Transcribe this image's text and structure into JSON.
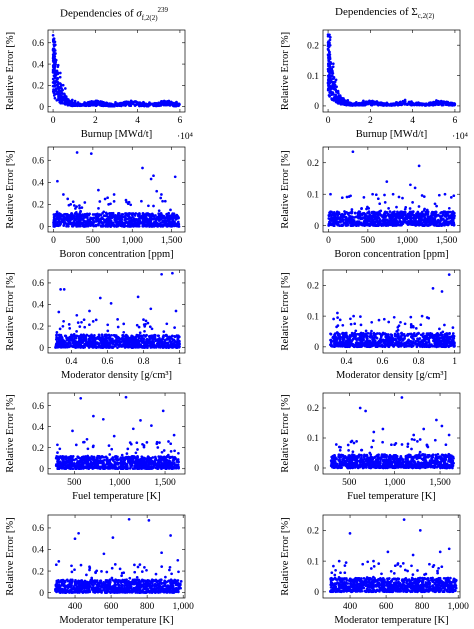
{
  "columns": [
    {
      "title_prefix": "Dependencies of ",
      "symbol": "σ",
      "sup": "239",
      "sub": "f,2(2)"
    },
    {
      "title_prefix": "Dependencies of ",
      "symbol": "Σ",
      "sup": "",
      "sub": "c,2(2)"
    }
  ],
  "colors": {
    "marker": "#0000ff",
    "axis": "#000000"
  },
  "chart_data": [
    {
      "type": "scatter",
      "row": 0,
      "col": 0,
      "xlabel": "Burnup [MWd/t]",
      "ylabel": "Relative Error [%]",
      "xlim": [
        -2400,
        62400
      ],
      "ylim": [
        -0.05,
        0.72
      ],
      "xticks": [
        0,
        20000,
        40000,
        60000
      ],
      "xtick_labels": [
        "0",
        "2",
        "4",
        "6"
      ],
      "yticks": [
        0,
        0.2,
        0.4,
        0.6
      ],
      "ytick_labels": [
        "0",
        "0.2",
        "0.4",
        "0.6"
      ],
      "x_multiplier": "·10⁴",
      "pattern": "burnup",
      "peak": 0.67,
      "base": 0.04
    },
    {
      "type": "scatter",
      "row": 0,
      "col": 1,
      "xlabel": "Burnup [MWd/t]",
      "ylabel": "Relative Error [%]",
      "xlim": [
        -2400,
        62400
      ],
      "ylim": [
        -0.02,
        0.25
      ],
      "xticks": [
        0,
        20000,
        40000,
        60000
      ],
      "xtick_labels": [
        "0",
        "2",
        "4",
        "6"
      ],
      "yticks": [
        0,
        0.1,
        0.2
      ],
      "ytick_labels": [
        "0",
        "0.1",
        "0.2"
      ],
      "x_multiplier": "·10⁴",
      "pattern": "burnup",
      "peak": 0.235,
      "base": 0.012
    },
    {
      "type": "scatter",
      "row": 1,
      "col": 0,
      "xlabel": "Boron concentration [ppm]",
      "ylabel": "Relative Error [%]",
      "xlim": [
        -70,
        1670
      ],
      "ylim": [
        -0.05,
        0.72
      ],
      "xticks": [
        0,
        500,
        1000,
        1500
      ],
      "xtick_labels": [
        "0",
        "500",
        "1,000",
        "1,500"
      ],
      "yticks": [
        0,
        0.2,
        0.4,
        0.6
      ],
      "ytick_labels": [
        "0",
        "0.2",
        "0.4",
        "0.6"
      ],
      "pattern": "cloud",
      "xr": [
        0,
        1600
      ],
      "band": 0.12,
      "outliers": [
        [
          50,
          0.41
        ],
        [
          125,
          0.29
        ],
        [
          300,
          0.67
        ],
        [
          480,
          0.66
        ],
        [
          570,
          0.33
        ],
        [
          770,
          0.29
        ],
        [
          1130,
          0.53
        ],
        [
          1240,
          0.43
        ],
        [
          1270,
          0.46
        ],
        [
          1310,
          0.32
        ],
        [
          1370,
          0.29
        ],
        [
          1545,
          0.45
        ],
        [
          700,
          0.2
        ],
        [
          180,
          0.25
        ],
        [
          960,
          0.22
        ]
      ]
    },
    {
      "type": "scatter",
      "row": 1,
      "col": 1,
      "xlabel": "Boron concentration [ppm]",
      "ylabel": "Relative Error [%]",
      "xlim": [
        -70,
        1670
      ],
      "ylim": [
        -0.02,
        0.25
      ],
      "xticks": [
        0,
        500,
        1000,
        1500
      ],
      "xtick_labels": [
        "0",
        "500",
        "1,000",
        "1,500"
      ],
      "yticks": [
        0,
        0.1,
        0.2
      ],
      "ytick_labels": [
        "0",
        "0.1",
        "0.2"
      ],
      "pattern": "cloud",
      "xr": [
        0,
        1600
      ],
      "band": 0.045,
      "outliers": [
        [
          25,
          0.1
        ],
        [
          310,
          0.235
        ],
        [
          450,
          0.09
        ],
        [
          560,
          0.1
        ],
        [
          740,
          0.14
        ],
        [
          820,
          0.1
        ],
        [
          1040,
          0.13
        ],
        [
          1100,
          0.12
        ],
        [
          1150,
          0.19
        ],
        [
          1480,
          0.1
        ],
        [
          1560,
          0.09
        ],
        [
          650,
          0.07
        ]
      ]
    },
    {
      "type": "scatter",
      "row": 2,
      "col": 0,
      "xlabel": "Moderator density [g/cm³]",
      "ylabel": "Relative Error [%]",
      "xlim": [
        0.27,
        1.03
      ],
      "ylim": [
        -0.05,
        0.72
      ],
      "xticks": [
        0.4,
        0.6,
        0.8,
        1.0
      ],
      "xtick_labels": [
        "0.4",
        "0.6",
        "0.8",
        "1"
      ],
      "yticks": [
        0,
        0.2,
        0.4,
        0.6
      ],
      "ytick_labels": [
        "0",
        "0.2",
        "0.4",
        "0.6"
      ],
      "pattern": "cloud",
      "xr": [
        0.31,
        1.0
      ],
      "band": 0.12,
      "outliers": [
        [
          0.34,
          0.54
        ],
        [
          0.36,
          0.54
        ],
        [
          0.43,
          0.3
        ],
        [
          0.5,
          0.34
        ],
        [
          0.56,
          0.46
        ],
        [
          0.62,
          0.41
        ],
        [
          0.69,
          0.22
        ],
        [
          0.77,
          0.47
        ],
        [
          0.84,
          0.36
        ],
        [
          0.9,
          0.68
        ],
        [
          0.96,
          0.69
        ],
        [
          0.8,
          0.26
        ],
        [
          0.33,
          0.33
        ],
        [
          0.98,
          0.34
        ]
      ]
    },
    {
      "type": "scatter",
      "row": 2,
      "col": 1,
      "xlabel": "Moderator density [g/cm³]",
      "ylabel": "Relative Error [%]",
      "xlim": [
        0.27,
        1.03
      ],
      "ylim": [
        -0.02,
        0.25
      ],
      "xticks": [
        0.4,
        0.6,
        0.8,
        1.0
      ],
      "xtick_labels": [
        "0.4",
        "0.6",
        "0.8",
        "1"
      ],
      "yticks": [
        0,
        0.1,
        0.2
      ],
      "ytick_labels": [
        "0",
        "0.1",
        "0.2"
      ],
      "pattern": "cloud",
      "xr": [
        0.31,
        1.0
      ],
      "band": 0.045,
      "outliers": [
        [
          0.35,
          0.11
        ],
        [
          0.44,
          0.1
        ],
        [
          0.54,
          0.08
        ],
        [
          0.61,
          0.09
        ],
        [
          0.7,
          0.08
        ],
        [
          0.82,
          0.1
        ],
        [
          0.88,
          0.19
        ],
        [
          0.93,
          0.18
        ],
        [
          0.97,
          0.235
        ],
        [
          0.38,
          0.07
        ],
        [
          0.76,
          0.07
        ]
      ]
    },
    {
      "type": "scatter",
      "row": 3,
      "col": 0,
      "xlabel": "Fuel temperature [K]",
      "ylabel": "Relative Error [%]",
      "xlim": [
        210,
        1720
      ],
      "ylim": [
        -0.05,
        0.72
      ],
      "xticks": [
        500,
        1000,
        1500
      ],
      "xtick_labels": [
        "500",
        "1,000",
        "1,500"
      ],
      "yticks": [
        0,
        0.2,
        0.4,
        0.6
      ],
      "ytick_labels": [
        "0",
        "0.2",
        "0.4",
        "0.6"
      ],
      "pattern": "cloud",
      "xr": [
        300,
        1650
      ],
      "band": 0.12,
      "outliers": [
        [
          340,
          0.19
        ],
        [
          480,
          0.36
        ],
        [
          570,
          0.67
        ],
        [
          710,
          0.5
        ],
        [
          820,
          0.47
        ],
        [
          940,
          0.31
        ],
        [
          1070,
          0.68
        ],
        [
          1150,
          0.38
        ],
        [
          1230,
          0.46
        ],
        [
          1350,
          0.41
        ],
        [
          1480,
          0.55
        ],
        [
          1600,
          0.32
        ],
        [
          1300,
          0.25
        ],
        [
          640,
          0.28
        ]
      ]
    },
    {
      "type": "scatter",
      "row": 3,
      "col": 1,
      "xlabel": "Fuel temperature [K]",
      "ylabel": "Relative Error [%]",
      "xlim": [
        210,
        1720
      ],
      "ylim": [
        -0.02,
        0.25
      ],
      "xticks": [
        500,
        1000,
        1500
      ],
      "xtick_labels": [
        "500",
        "1,000",
        "1,500"
      ],
      "yticks": [
        0,
        0.1,
        0.2
      ],
      "ytick_labels": [
        "0",
        "0.1",
        "0.2"
      ],
      "pattern": "cloud",
      "xr": [
        300,
        1650
      ],
      "band": 0.045,
      "outliers": [
        [
          390,
          0.07
        ],
        [
          530,
          0.09
        ],
        [
          620,
          0.2
        ],
        [
          680,
          0.19
        ],
        [
          770,
          0.12
        ],
        [
          870,
          0.13
        ],
        [
          1080,
          0.235
        ],
        [
          1210,
          0.11
        ],
        [
          1320,
          0.13
        ],
        [
          1460,
          0.16
        ],
        [
          1520,
          0.14
        ],
        [
          1600,
          0.11
        ]
      ]
    },
    {
      "type": "scatter",
      "row": 4,
      "col": 0,
      "xlabel": "Moderator temperature [K]",
      "ylabel": "Relative Error [%]",
      "xlim": [
        250,
        1010
      ],
      "ylim": [
        -0.05,
        0.72
      ],
      "xticks": [
        400,
        600,
        800,
        1000
      ],
      "xtick_labels": [
        "400",
        "600",
        "800",
        "1,000"
      ],
      "yticks": [
        0,
        0.2,
        0.4,
        0.6
      ],
      "ytick_labels": [
        "0",
        "0.2",
        "0.4",
        "0.6"
      ],
      "pattern": "cloud",
      "xr": [
        290,
        990
      ],
      "band": 0.12,
      "outliers": [
        [
          310,
          0.29
        ],
        [
          400,
          0.5
        ],
        [
          420,
          0.55
        ],
        [
          480,
          0.24
        ],
        [
          560,
          0.36
        ],
        [
          610,
          0.51
        ],
        [
          700,
          0.68
        ],
        [
          760,
          0.26
        ],
        [
          810,
          0.67
        ],
        [
          880,
          0.37
        ],
        [
          930,
          0.53
        ],
        [
          970,
          0.3
        ],
        [
          650,
          0.22
        ]
      ]
    },
    {
      "type": "scatter",
      "row": 4,
      "col": 1,
      "xlabel": "Moderator temperature [K]",
      "ylabel": "Relative Error [%]",
      "xlim": [
        250,
        1010
      ],
      "ylim": [
        -0.02,
        0.25
      ],
      "xticks": [
        400,
        600,
        800,
        1000
      ],
      "xtick_labels": [
        "400",
        "600",
        "800",
        "1,000"
      ],
      "yticks": [
        0,
        0.1,
        0.2
      ],
      "ytick_labels": [
        "0",
        "0.1",
        "0.2"
      ],
      "pattern": "cloud",
      "xr": [
        290,
        990
      ],
      "band": 0.045,
      "outliers": [
        [
          320,
          0.07
        ],
        [
          400,
          0.19
        ],
        [
          470,
          0.09
        ],
        [
          530,
          0.1
        ],
        [
          610,
          0.13
        ],
        [
          700,
          0.235
        ],
        [
          750,
          0.12
        ],
        [
          790,
          0.2
        ],
        [
          840,
          0.09
        ],
        [
          900,
          0.13
        ],
        [
          950,
          0.14
        ],
        [
          340,
          0.1
        ]
      ]
    }
  ]
}
